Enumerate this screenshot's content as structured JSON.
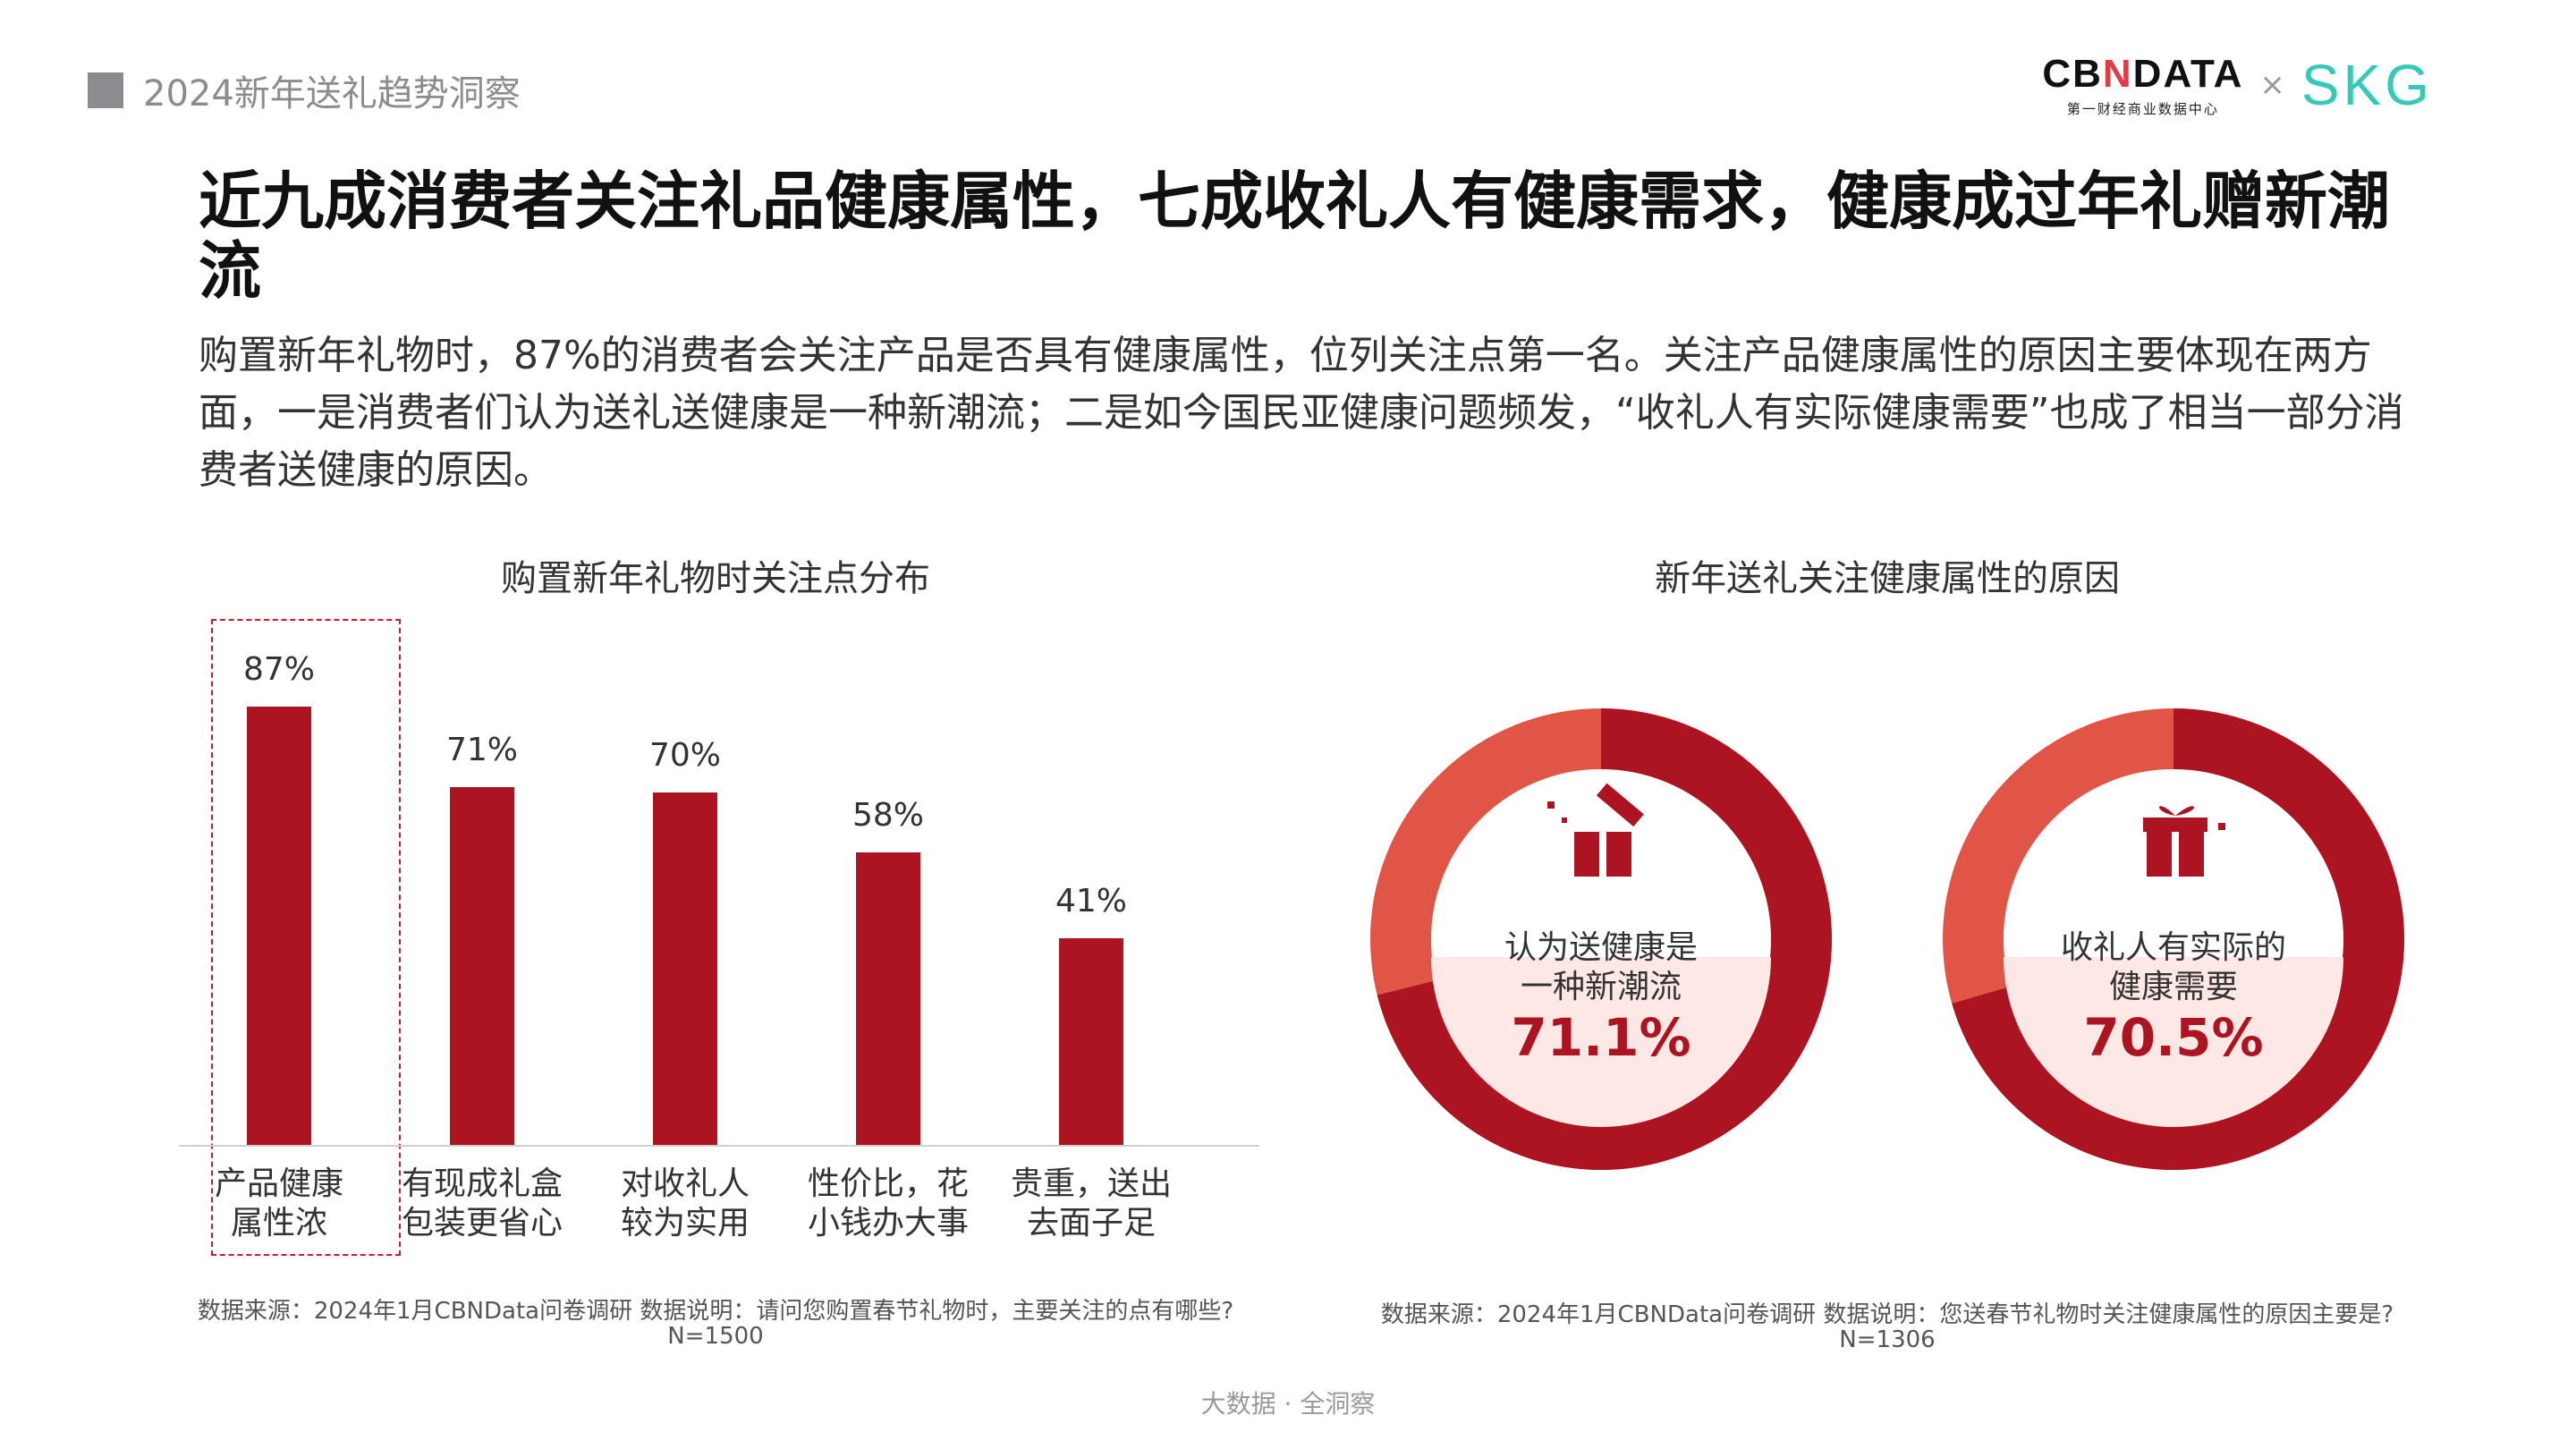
{
  "header": {
    "section_title": "2024新年送礼趋势洞察"
  },
  "brand": {
    "cbn_word_a": "CB",
    "cbn_word_n": "N",
    "cbn_word_b": "DATA",
    "cbn_sub": "第一财经商业数据中心",
    "times": "×",
    "skg": "SKG"
  },
  "main": {
    "title": "近九成消费者关注礼品健康属性，七成收礼人有健康需求，健康成过年礼赠新潮流",
    "description": "购置新年礼物时，87%的消费者会关注产品是否具有健康属性，位列关注点第一名。关注产品健康属性的原因主要体现在两方面，一是消费者们认为送礼送健康是一种新潮流；二是如今国民亚健康问题频发，“收礼人有实际健康需要”也成了相当一部分消费者送健康的原因。"
  },
  "colors": {
    "bar": "#ab1420",
    "donut_dark": "#ab1420",
    "donut_light": "#e05545",
    "donut_center": "#fde8e6",
    "brand_n": "#e23c4a",
    "skg": "#36c9b8"
  },
  "chart_data": [
    {
      "type": "bar",
      "title": "购置新年礼物时关注点分布",
      "categories": [
        [
          "产品健康",
          "属性浓"
        ],
        [
          "有现成礼盒",
          "包装更省心"
        ],
        [
          "对收礼人",
          "较为实用"
        ],
        [
          "性价比，花",
          "小钱办大事"
        ],
        [
          "贵重，送出",
          "去面子足"
        ]
      ],
      "values": [
        87,
        71,
        70,
        58,
        41
      ],
      "value_labels": [
        "87%",
        "71%",
        "70%",
        "58%",
        "41%"
      ],
      "highlight_index": 0,
      "ylim": [
        0,
        100
      ],
      "grid": false,
      "source": "数据来源：2024年1月CBNData问卷调研 数据说明：请问您购置春节礼物时，主要关注的点有哪些?",
      "sample": "N=1500"
    },
    {
      "type": "pie",
      "title": "新年送礼关注健康属性的原因",
      "items": [
        {
          "label": [
            "认为送健康是",
            "一种新潮流"
          ],
          "value": 71.1,
          "value_label": "71.1%",
          "icon": "gift-box-opening-icon"
        },
        {
          "label": [
            "收礼人有实际的",
            "健康需要"
          ],
          "value": 70.5,
          "value_label": "70.5%",
          "icon": "gift-box-icon"
        }
      ],
      "source": "数据来源：2024年1月CBNData问卷调研 数据说明：您送春节礼物时关注健康属性的原因主要是?",
      "sample": "N=1306"
    }
  ],
  "footer": {
    "text": "大数据 · 全洞察"
  }
}
